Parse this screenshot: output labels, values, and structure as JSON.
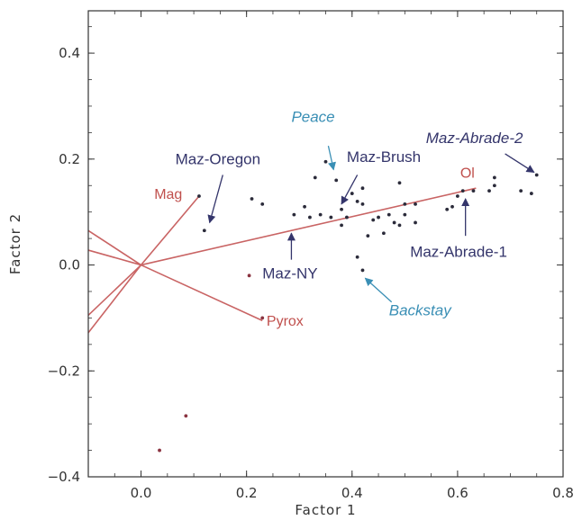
{
  "chart_data": {
    "type": "scatter",
    "xlabel": "Factor 1",
    "ylabel": "Factor 2",
    "xlim": [
      -0.1,
      0.8
    ],
    "ylim": [
      -0.4,
      0.48
    ],
    "xticks": [
      0.0,
      0.2,
      0.4,
      0.6,
      0.8
    ],
    "xtick_labels": [
      "0.0",
      "0.2",
      "0.4",
      "0.6",
      "0.8"
    ],
    "yticks": [
      -0.4,
      -0.2,
      0.0,
      0.2,
      0.4
    ],
    "ytick_labels": [
      "−0.4",
      "−0.2",
      "0.0",
      "0.2",
      "0.4"
    ],
    "grid": false,
    "colors": {
      "points_dark": "#2b2b3a",
      "points_red": "#8a3340",
      "vectors": "#c96464",
      "annotation_navy": "#34356b",
      "annotation_blue": "#3a8fb5",
      "vector_label": "#c0504d"
    },
    "points": [
      {
        "x": 0.12,
        "y": 0.065
      },
      {
        "x": 0.21,
        "y": 0.125
      },
      {
        "x": 0.23,
        "y": 0.115
      },
      {
        "x": 0.29,
        "y": 0.095
      },
      {
        "x": 0.31,
        "y": 0.11
      },
      {
        "x": 0.32,
        "y": 0.09
      },
      {
        "x": 0.33,
        "y": 0.165
      },
      {
        "x": 0.34,
        "y": 0.095
      },
      {
        "x": 0.35,
        "y": 0.195
      },
      {
        "x": 0.36,
        "y": 0.09
      },
      {
        "x": 0.37,
        "y": 0.16
      },
      {
        "x": 0.38,
        "y": 0.105
      },
      {
        "x": 0.38,
        "y": 0.075
      },
      {
        "x": 0.39,
        "y": 0.09
      },
      {
        "x": 0.4,
        "y": 0.135
      },
      {
        "x": 0.41,
        "y": 0.12
      },
      {
        "x": 0.42,
        "y": 0.145
      },
      {
        "x": 0.42,
        "y": 0.115
      },
      {
        "x": 0.43,
        "y": 0.055
      },
      {
        "x": 0.44,
        "y": 0.085
      },
      {
        "x": 0.45,
        "y": 0.09
      },
      {
        "x": 0.46,
        "y": 0.06
      },
      {
        "x": 0.47,
        "y": 0.095
      },
      {
        "x": 0.48,
        "y": 0.08
      },
      {
        "x": 0.49,
        "y": 0.075
      },
      {
        "x": 0.49,
        "y": 0.155
      },
      {
        "x": 0.5,
        "y": 0.115
      },
      {
        "x": 0.5,
        "y": 0.095
      },
      {
        "x": 0.52,
        "y": 0.08
      },
      {
        "x": 0.52,
        "y": 0.115
      },
      {
        "x": 0.41,
        "y": 0.015
      },
      {
        "x": 0.42,
        "y": -0.01
      },
      {
        "x": 0.58,
        "y": 0.105
      },
      {
        "x": 0.59,
        "y": 0.11
      },
      {
        "x": 0.6,
        "y": 0.13
      },
      {
        "x": 0.61,
        "y": 0.14
      },
      {
        "x": 0.63,
        "y": 0.14
      },
      {
        "x": 0.66,
        "y": 0.14
      },
      {
        "x": 0.67,
        "y": 0.165
      },
      {
        "x": 0.67,
        "y": 0.15
      },
      {
        "x": 0.72,
        "y": 0.14
      },
      {
        "x": 0.74,
        "y": 0.135
      },
      {
        "x": 0.75,
        "y": 0.17
      },
      {
        "x": 0.11,
        "y": 0.13
      },
      {
        "x": 0.205,
        "y": -0.02,
        "tone": "red"
      },
      {
        "x": 0.23,
        "y": -0.1,
        "tone": "red"
      },
      {
        "x": 0.085,
        "y": -0.285,
        "tone": "red"
      },
      {
        "x": 0.035,
        "y": -0.35,
        "tone": "red"
      }
    ],
    "vectors": [
      {
        "from": [
          0.0,
          0.0
        ],
        "to": [
          0.11,
          0.13
        ]
      },
      {
        "from": [
          0.0,
          0.0
        ],
        "to": [
          0.635,
          0.145
        ]
      },
      {
        "from": [
          0.0,
          0.0
        ],
        "to": [
          0.23,
          -0.105
        ]
      },
      {
        "from": [
          0.0,
          0.0
        ],
        "to": [
          -0.1,
          0.065
        ]
      },
      {
        "from": [
          0.0,
          0.0
        ],
        "to": [
          -0.1,
          0.028
        ]
      },
      {
        "from": [
          0.0,
          0.0
        ],
        "to": [
          -0.1,
          -0.095
        ]
      },
      {
        "from": [
          0.0,
          0.0
        ],
        "to": [
          -0.1,
          -0.128
        ]
      }
    ],
    "vector_labels": [
      {
        "text": "Mag",
        "x": 0.025,
        "y": 0.125
      },
      {
        "text": "Ol",
        "x": 0.605,
        "y": 0.165
      },
      {
        "text": "Pyrox",
        "x": 0.238,
        "y": -0.115
      }
    ],
    "annotations": [
      {
        "text": "Peace",
        "italic": true,
        "tone": "blue",
        "label_x": 0.285,
        "label_y": 0.27,
        "from": [
          0.355,
          0.225
        ],
        "to": [
          0.365,
          0.18
        ]
      },
      {
        "text": "Maz-Oregon",
        "italic": false,
        "tone": "navy",
        "label_x": 0.065,
        "label_y": 0.19,
        "from": [
          0.155,
          0.17
        ],
        "to": [
          0.13,
          0.08
        ]
      },
      {
        "text": "Maz-Brush",
        "italic": false,
        "tone": "navy",
        "label_x": 0.39,
        "label_y": 0.195,
        "from": [
          0.41,
          0.17
        ],
        "to": [
          0.38,
          0.115
        ]
      },
      {
        "text": "Maz-Abrade-2",
        "italic": true,
        "tone": "navy",
        "label_x": 0.54,
        "label_y": 0.23,
        "from": [
          0.69,
          0.21
        ],
        "to": [
          0.745,
          0.175
        ]
      },
      {
        "text": "Maz-NY",
        "italic": false,
        "tone": "navy",
        "label_x": 0.23,
        "label_y": -0.025,
        "from": [
          0.285,
          0.01
        ],
        "to": [
          0.285,
          0.06
        ]
      },
      {
        "text": "Maz-Abrade-1",
        "italic": false,
        "tone": "navy",
        "label_x": 0.51,
        "label_y": 0.015,
        "from": [
          0.615,
          0.055
        ],
        "to": [
          0.615,
          0.125
        ]
      },
      {
        "text": "Backstay",
        "italic": true,
        "tone": "blue",
        "label_x": 0.47,
        "label_y": -0.095,
        "from": [
          0.475,
          -0.07
        ],
        "to": [
          0.425,
          -0.025
        ]
      }
    ]
  }
}
